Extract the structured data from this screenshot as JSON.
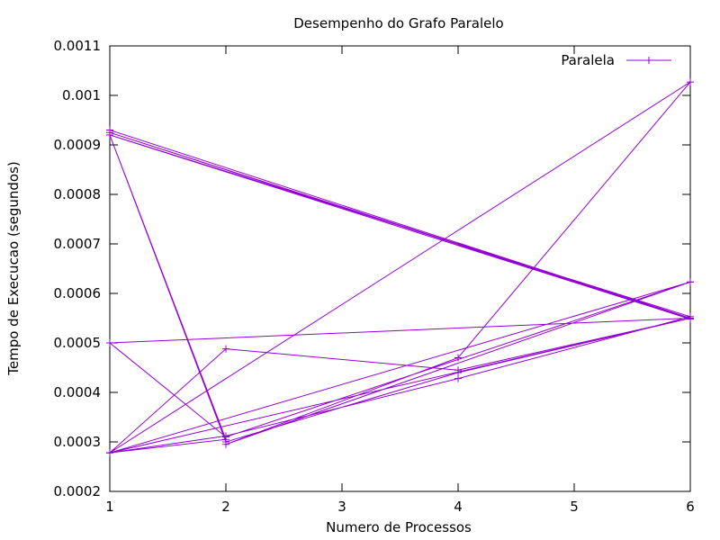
{
  "chart_data": {
    "type": "line",
    "title": "Desempenho do Grafo Paralelo",
    "xlabel": "Numero de Processos",
    "ylabel": "Tempo de Execucao (segundos)",
    "xlim": [
      1,
      6
    ],
    "ylim": [
      0.0002,
      0.0011
    ],
    "x_ticks": [
      1,
      2,
      3,
      4,
      5,
      6
    ],
    "y_ticks": [
      0.0002,
      0.0003,
      0.0004,
      0.0005,
      0.0006,
      0.0007,
      0.0008,
      0.0009,
      0.001,
      0.0011
    ],
    "x_tick_labels": [
      "1",
      "2",
      "3",
      "4",
      "5",
      "6"
    ],
    "y_tick_labels": [
      "0.0002",
      "0.0003",
      "0.0004",
      "0.0005",
      "0.0006",
      "0.0007",
      "0.0008",
      "0.0009",
      "0.001",
      "0.0011"
    ],
    "grid": false,
    "legend_position": "top-right",
    "series": [
      {
        "name": "Paralela",
        "color": "#9400d3",
        "marker": "plus",
        "points": [
          [
            1,
            0.00093
          ],
          [
            6,
            0.00055
          ],
          [
            1,
            0.000925
          ],
          [
            6,
            0.000548
          ],
          [
            1,
            0.00092
          ],
          [
            2,
            0.000305
          ],
          [
            1,
            0.000278
          ],
          [
            6,
            0.00055
          ],
          [
            1,
            0.0005
          ],
          [
            2,
            0.00031
          ],
          [
            6,
            0.000623
          ],
          [
            1,
            0.000278
          ],
          [
            2,
            0.000488
          ],
          [
            4,
            0.000445
          ],
          [
            6,
            0.00055
          ],
          [
            1,
            0.000278
          ],
          [
            6,
            0.001027
          ],
          [
            4,
            0.00047
          ],
          [
            2,
            0.000295
          ],
          [
            6,
            0.000623
          ],
          [
            1,
            0.000278
          ],
          [
            2,
            0.000312
          ],
          [
            4,
            0.000428
          ],
          [
            6,
            0.000553
          ],
          [
            1,
            0.00092
          ],
          [
            2,
            0.0003
          ],
          [
            4,
            0.00044
          ],
          [
            6,
            0.00055
          ]
        ]
      }
    ]
  }
}
